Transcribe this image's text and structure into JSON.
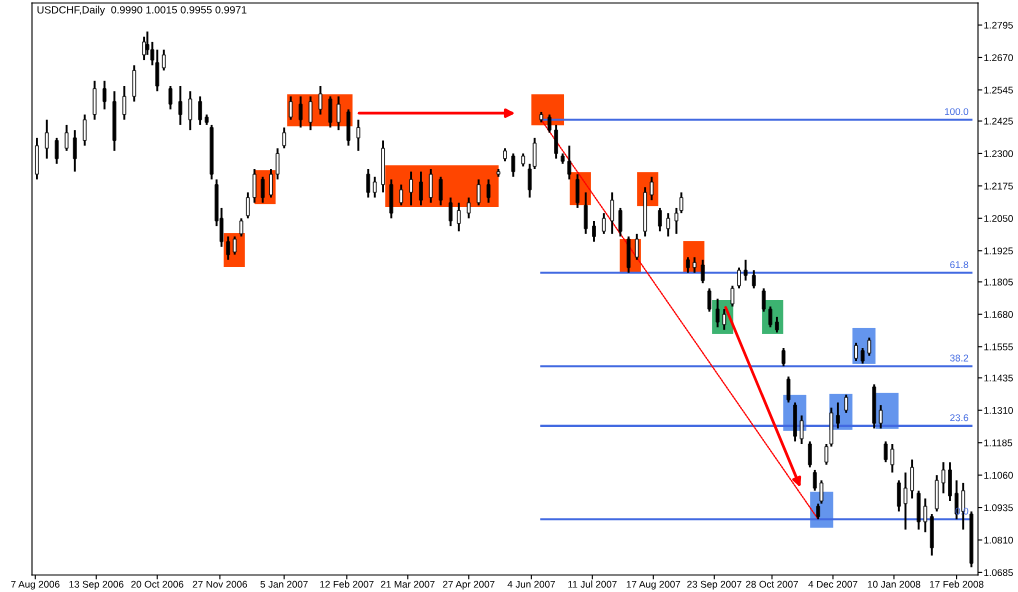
{
  "chart_data": {
    "type": "candlestick",
    "title": "USDCHF,Daily  0.9990 1.0015 0.9955 0.9971",
    "color": "#000000",
    "x": [
      "2006-08-08",
      "2006-08-14",
      "2006-08-20",
      "2006-08-26",
      "2006-08-31",
      "2006-09-06",
      "2006-09-12",
      "2006-09-18",
      "2006-09-24",
      "2006-09-30",
      "2006-10-06",
      "2006-10-12",
      "2006-10-14",
      "2006-10-17",
      "2006-10-20",
      "2006-10-24",
      "2006-10-28",
      "2006-11-03",
      "2006-11-09",
      "2006-11-15",
      "2006-11-19",
      "2006-11-22",
      "2006-11-25",
      "2006-11-28",
      "2006-12-02",
      "2006-12-06",
      "2006-12-10",
      "2006-12-14",
      "2006-12-18",
      "2006-12-23",
      "2006-12-28",
      "2007-01-01",
      "2007-01-05",
      "2007-01-09",
      "2007-01-15",
      "2007-01-21",
      "2007-01-27",
      "2007-02-02",
      "2007-02-07",
      "2007-02-13",
      "2007-02-19",
      "2007-02-25",
      "2007-03-01",
      "2007-03-06",
      "2007-03-11",
      "2007-03-17",
      "2007-03-23",
      "2007-03-29",
      "2007-04-04",
      "2007-04-10",
      "2007-04-16",
      "2007-04-21",
      "2007-04-27",
      "2007-05-03",
      "2007-05-09",
      "2007-05-15",
      "2007-05-19",
      "2007-05-24",
      "2007-05-30",
      "2007-06-03",
      "2007-06-06",
      "2007-06-10",
      "2007-06-15",
      "2007-06-19",
      "2007-06-23",
      "2007-06-27",
      "2007-07-02",
      "2007-07-07",
      "2007-07-12",
      "2007-07-18",
      "2007-07-23",
      "2007-07-28",
      "2007-08-02",
      "2007-08-07",
      "2007-08-12",
      "2007-08-16",
      "2007-08-21",
      "2007-08-26",
      "2007-08-31",
      "2007-09-03",
      "2007-09-07",
      "2007-09-11",
      "2007-09-16",
      "2007-09-20",
      "2007-09-25",
      "2007-09-29",
      "2007-10-04",
      "2007-10-08",
      "2007-10-12",
      "2007-10-17",
      "2007-10-23",
      "2007-10-27",
      "2007-10-31",
      "2007-11-04",
      "2007-11-07",
      "2007-11-11",
      "2007-11-15",
      "2007-11-20",
      "2007-11-23",
      "2007-11-25",
      "2007-11-27",
      "2007-11-30",
      "2007-12-03",
      "2007-12-07",
      "2007-12-12",
      "2007-12-18",
      "2007-12-22",
      "2007-12-26",
      "2007-12-29",
      "2008-01-02",
      "2008-01-05",
      "2008-01-09",
      "2008-01-13",
      "2008-01-17",
      "2008-01-21",
      "2008-01-25",
      "2008-01-29",
      "2008-02-02",
      "2008-02-05",
      "2008-02-09",
      "2008-02-13",
      "2008-02-17",
      "2008-02-21",
      "2008-02-26"
    ],
    "ohlc": [
      [
        1.222,
        1.236,
        1.22,
        1.233
      ],
      [
        1.232,
        1.243,
        1.228,
        1.238
      ],
      [
        1.235,
        1.236,
        1.226,
        1.228
      ],
      [
        1.232,
        1.241,
        1.231,
        1.238
      ],
      [
        1.236,
        1.239,
        1.223,
        1.228
      ],
      [
        1.235,
        1.245,
        1.233,
        1.243
      ],
      [
        1.245,
        1.258,
        1.243,
        1.255
      ],
      [
        1.255,
        1.258,
        1.247,
        1.25
      ],
      [
        1.25,
        1.254,
        1.231,
        1.235
      ],
      [
        1.245,
        1.256,
        1.243,
        1.252
      ],
      [
        1.252,
        1.264,
        1.25,
        1.262
      ],
      [
        1.268,
        1.275,
        1.266,
        1.273
      ],
      [
        1.272,
        1.277,
        1.268,
        1.27
      ],
      [
        1.27,
        1.273,
        1.264,
        1.266
      ],
      [
        1.265,
        1.27,
        1.254,
        1.256
      ],
      [
        1.263,
        1.27,
        1.262,
        1.268
      ],
      [
        1.255,
        1.256,
        1.247,
        1.249
      ],
      [
        1.25,
        1.256,
        1.241,
        1.245
      ],
      [
        1.243,
        1.254,
        1.239,
        1.251
      ],
      [
        1.25,
        1.252,
        1.241,
        1.243
      ],
      [
        1.244,
        1.245,
        1.241,
        1.242
      ],
      [
        1.24,
        1.241,
        1.22,
        1.222
      ],
      [
        1.218,
        1.22,
        1.202,
        1.204
      ],
      [
        1.205,
        1.209,
        1.194,
        1.196
      ],
      [
        1.196,
        1.198,
        1.189,
        1.191
      ],
      [
        1.192,
        1.198,
        1.191,
        1.197
      ],
      [
        1.199,
        1.205,
        1.198,
        1.204
      ],
      [
        1.206,
        1.215,
        1.205,
        1.213
      ],
      [
        1.213,
        1.224,
        1.211,
        1.222
      ],
      [
        1.22,
        1.221,
        1.211,
        1.213
      ],
      [
        1.214,
        1.224,
        1.213,
        1.222
      ],
      [
        1.222,
        1.232,
        1.22,
        1.23
      ],
      [
        1.233,
        1.24,
        1.232,
        1.238
      ],
      [
        1.244,
        1.252,
        1.243,
        1.25
      ],
      [
        1.249,
        1.252,
        1.24,
        1.243
      ],
      [
        1.242,
        1.252,
        1.239,
        1.25
      ],
      [
        1.247,
        1.256,
        1.245,
        1.253
      ],
      [
        1.251,
        1.252,
        1.24,
        1.242
      ],
      [
        1.242,
        1.252,
        1.239,
        1.249
      ],
      [
        1.246,
        1.247,
        1.233,
        1.235
      ],
      [
        1.236,
        1.243,
        1.231,
        1.24
      ],
      [
        1.222,
        1.224,
        1.213,
        1.215
      ],
      [
        1.215,
        1.221,
        1.213,
        1.219
      ],
      [
        1.218,
        1.235,
        1.215,
        1.232
      ],
      [
        1.218,
        1.22,
        1.205,
        1.207
      ],
      [
        1.211,
        1.218,
        1.21,
        1.216
      ],
      [
        1.215,
        1.223,
        1.21,
        1.22
      ],
      [
        1.219,
        1.223,
        1.21,
        1.212
      ],
      [
        1.213,
        1.224,
        1.211,
        1.222
      ],
      [
        1.22,
        1.221,
        1.21,
        1.212
      ],
      [
        1.211,
        1.213,
        1.202,
        1.204
      ],
      [
        1.203,
        1.211,
        1.2,
        1.208
      ],
      [
        1.207,
        1.213,
        1.205,
        1.211
      ],
      [
        1.211,
        1.22,
        1.21,
        1.218
      ],
      [
        1.218,
        1.22,
        1.211,
        1.213
      ],
      [
        1.222,
        1.224,
        1.221,
        1.223
      ],
      [
        1.228,
        1.232,
        1.227,
        1.231
      ],
      [
        1.229,
        1.23,
        1.221,
        1.223
      ],
      [
        1.226,
        1.23,
        1.225,
        1.229
      ],
      [
        1.224,
        1.226,
        1.213,
        1.216
      ],
      [
        1.225,
        1.236,
        1.224,
        1.234
      ],
      [
        1.243,
        1.246,
        1.242,
        1.245
      ],
      [
        1.244,
        1.245,
        1.238,
        1.239
      ],
      [
        1.239,
        1.241,
        1.228,
        1.23
      ],
      [
        1.229,
        1.23,
        1.226,
        1.227
      ],
      [
        1.227,
        1.233,
        1.22,
        1.222
      ],
      [
        1.22,
        1.222,
        1.209,
        1.211
      ],
      [
        1.21,
        1.215,
        1.199,
        1.201
      ],
      [
        1.202,
        1.204,
        1.196,
        1.198
      ],
      [
        1.2,
        1.207,
        1.199,
        1.205
      ],
      [
        1.204,
        1.215,
        1.199,
        1.212
      ],
      [
        1.208,
        1.209,
        1.198,
        1.2
      ],
      [
        1.197,
        1.198,
        1.184,
        1.186
      ],
      [
        1.19,
        1.199,
        1.189,
        1.197
      ],
      [
        1.2,
        1.217,
        1.198,
        1.215
      ],
      [
        1.214,
        1.221,
        1.212,
        1.219
      ],
      [
        1.208,
        1.209,
        1.2,
        1.202
      ],
      [
        1.201,
        1.207,
        1.198,
        1.205
      ],
      [
        1.204,
        1.209,
        1.199,
        1.207
      ],
      [
        1.208,
        1.215,
        1.207,
        1.213
      ],
      [
        1.189,
        1.19,
        1.184,
        1.186
      ],
      [
        1.186,
        1.19,
        1.184,
        1.188
      ],
      [
        1.187,
        1.189,
        1.18,
        1.181
      ],
      [
        1.177,
        1.178,
        1.169,
        1.17
      ],
      [
        1.17,
        1.174,
        1.163,
        1.165
      ],
      [
        1.164,
        1.17,
        1.162,
        1.168
      ],
      [
        1.172,
        1.179,
        1.171,
        1.178
      ],
      [
        1.179,
        1.186,
        1.178,
        1.185
      ],
      [
        1.185,
        1.189,
        1.181,
        1.183
      ],
      [
        1.183,
        1.185,
        1.178,
        1.179
      ],
      [
        1.177,
        1.178,
        1.169,
        1.17
      ],
      [
        1.17,
        1.171,
        1.163,
        1.164
      ],
      [
        1.165,
        1.167,
        1.161,
        1.162
      ],
      [
        1.154,
        1.155,
        1.148,
        1.149
      ],
      [
        1.143,
        1.144,
        1.134,
        1.135
      ],
      [
        1.133,
        1.134,
        1.119,
        1.121
      ],
      [
        1.12,
        1.129,
        1.118,
        1.127
      ],
      [
        1.118,
        1.119,
        1.109,
        1.11
      ],
      [
        1.107,
        1.108,
        1.1,
        1.101
      ],
      [
        1.094,
        1.095,
        1.089,
        1.09
      ],
      [
        1.096,
        1.104,
        1.095,
        1.103
      ],
      [
        1.111,
        1.118,
        1.11,
        1.117
      ],
      [
        1.118,
        1.132,
        1.117,
        1.13
      ],
      [
        1.129,
        1.134,
        1.124,
        1.126
      ],
      [
        1.131,
        1.137,
        1.13,
        1.136
      ],
      [
        1.151,
        1.157,
        1.15,
        1.156
      ],
      [
        1.154,
        1.155,
        1.149,
        1.15
      ],
      [
        1.153,
        1.159,
        1.152,
        1.158
      ],
      [
        1.14,
        1.141,
        1.124,
        1.126
      ],
      [
        1.126,
        1.133,
        1.124,
        1.131
      ],
      [
        1.118,
        1.119,
        1.111,
        1.112
      ],
      [
        1.11,
        1.118,
        1.107,
        1.116
      ],
      [
        1.103,
        1.104,
        1.092,
        1.094
      ],
      [
        1.095,
        1.107,
        1.085,
        1.101
      ],
      [
        1.1,
        1.112,
        1.097,
        1.109
      ],
      [
        1.099,
        1.1,
        1.085,
        1.088
      ],
      [
        1.088,
        1.097,
        1.084,
        1.094
      ],
      [
        1.09,
        1.091,
        1.075,
        1.078
      ],
      [
        1.093,
        1.106,
        1.092,
        1.104
      ],
      [
        1.103,
        1.111,
        1.099,
        1.108
      ],
      [
        1.108,
        1.111,
        1.096,
        1.098
      ],
      [
        1.099,
        1.104,
        1.089,
        1.091
      ],
      [
        1.092,
        1.103,
        1.085,
        1.1
      ],
      [
        1.091,
        1.092,
        1.0705,
        1.072
      ]
    ],
    "series": [
      {
        "type": "line",
        "name": "100.0",
        "color": "#4169e1",
        "x": [
          "2007-06-10",
          "2008-02-26"
        ],
        "values": [
          1.243,
          1.243
        ]
      },
      {
        "type": "line",
        "name": "61.8",
        "color": "#4169e1",
        "x": [
          "2007-06-10",
          "2008-02-26"
        ],
        "values": [
          1.184,
          1.184
        ]
      },
      {
        "type": "line",
        "name": "38.2",
        "color": "#4169e1",
        "x": [
          "2007-06-10",
          "2008-02-26"
        ],
        "values": [
          1.148,
          1.148
        ]
      },
      {
        "type": "line",
        "name": "23.6",
        "color": "#4169e1",
        "x": [
          "2007-06-10",
          "2008-02-26"
        ],
        "values": [
          1.125,
          1.125
        ]
      },
      {
        "type": "line",
        "name": "0.0",
        "color": "#4169e1",
        "x": [
          "2007-06-10",
          "2008-02-26"
        ],
        "values": [
          1.089,
          1.089
        ]
      },
      {
        "type": "line",
        "color": "#ff0000",
        "line_style": "dotted",
        "x": [
          "2007-06-10",
          "2007-11-25"
        ],
        "values": [
          1.243,
          1.089
        ]
      }
    ],
    "xlim": [
      "2006-08-05",
      "2008-03-01"
    ],
    "xticks": [
      {
        "value": "2006-08-07",
        "label": "7 Aug 2006"
      },
      {
        "value": "2006-09-13",
        "label": "13 Sep 2006"
      },
      {
        "value": "2006-10-20",
        "label": "20 Oct 2006"
      },
      {
        "value": "2006-11-27",
        "label": "27 Nov 2006"
      },
      {
        "value": "2007-01-05",
        "label": "5 Jan 2007"
      },
      {
        "value": "2007-02-12",
        "label": "12 Feb 2007"
      },
      {
        "value": "2007-03-21",
        "label": "21 Mar 2007"
      },
      {
        "value": "2007-04-27",
        "label": "27 Apr 2007"
      },
      {
        "value": "2007-06-04",
        "label": "4 Jun 2007"
      },
      {
        "value": "2007-07-11",
        "label": "11 Jul 2007"
      },
      {
        "value": "2007-08-17",
        "label": "17 Aug 2007"
      },
      {
        "value": "2007-09-23",
        "label": "23 Sep 2007"
      },
      {
        "value": "2007-10-28",
        "label": "28 Oct 2007"
      },
      {
        "value": "2007-12-04",
        "label": "4 Dec 2007"
      },
      {
        "value": "2008-01-10",
        "label": "10 Jan 2008"
      },
      {
        "value": "2008-02-17",
        "label": "17 Feb 2008"
      }
    ],
    "ylim": [
      1.0675,
      1.288
    ],
    "yticks": [
      {
        "value": 1.2795,
        "label": "1.2795"
      },
      {
        "value": 1.267,
        "label": "1.2670"
      },
      {
        "value": 1.2545,
        "label": "1.2545"
      },
      {
        "value": 1.2425,
        "label": "1.2425"
      },
      {
        "value": 1.23,
        "label": "1.2300"
      },
      {
        "value": 1.2175,
        "label": "1.2175"
      },
      {
        "value": 1.205,
        "label": "1.2050"
      },
      {
        "value": 1.1925,
        "label": "1.1925"
      },
      {
        "value": 1.1805,
        "label": "1.1805"
      },
      {
        "value": 1.168,
        "label": "1.1680"
      },
      {
        "value": 1.1555,
        "label": "1.1555"
      },
      {
        "value": 1.1435,
        "label": "1.1435"
      },
      {
        "value": 1.131,
        "label": "1.1310"
      },
      {
        "value": 1.1185,
        "label": "1.1185"
      },
      {
        "value": 1.106,
        "label": "1.1060"
      },
      {
        "value": 1.0935,
        "label": "1.0935"
      },
      {
        "value": 1.081,
        "label": "1.0810"
      },
      {
        "value": 1.0685,
        "label": "1.0685"
      }
    ]
  }
}
